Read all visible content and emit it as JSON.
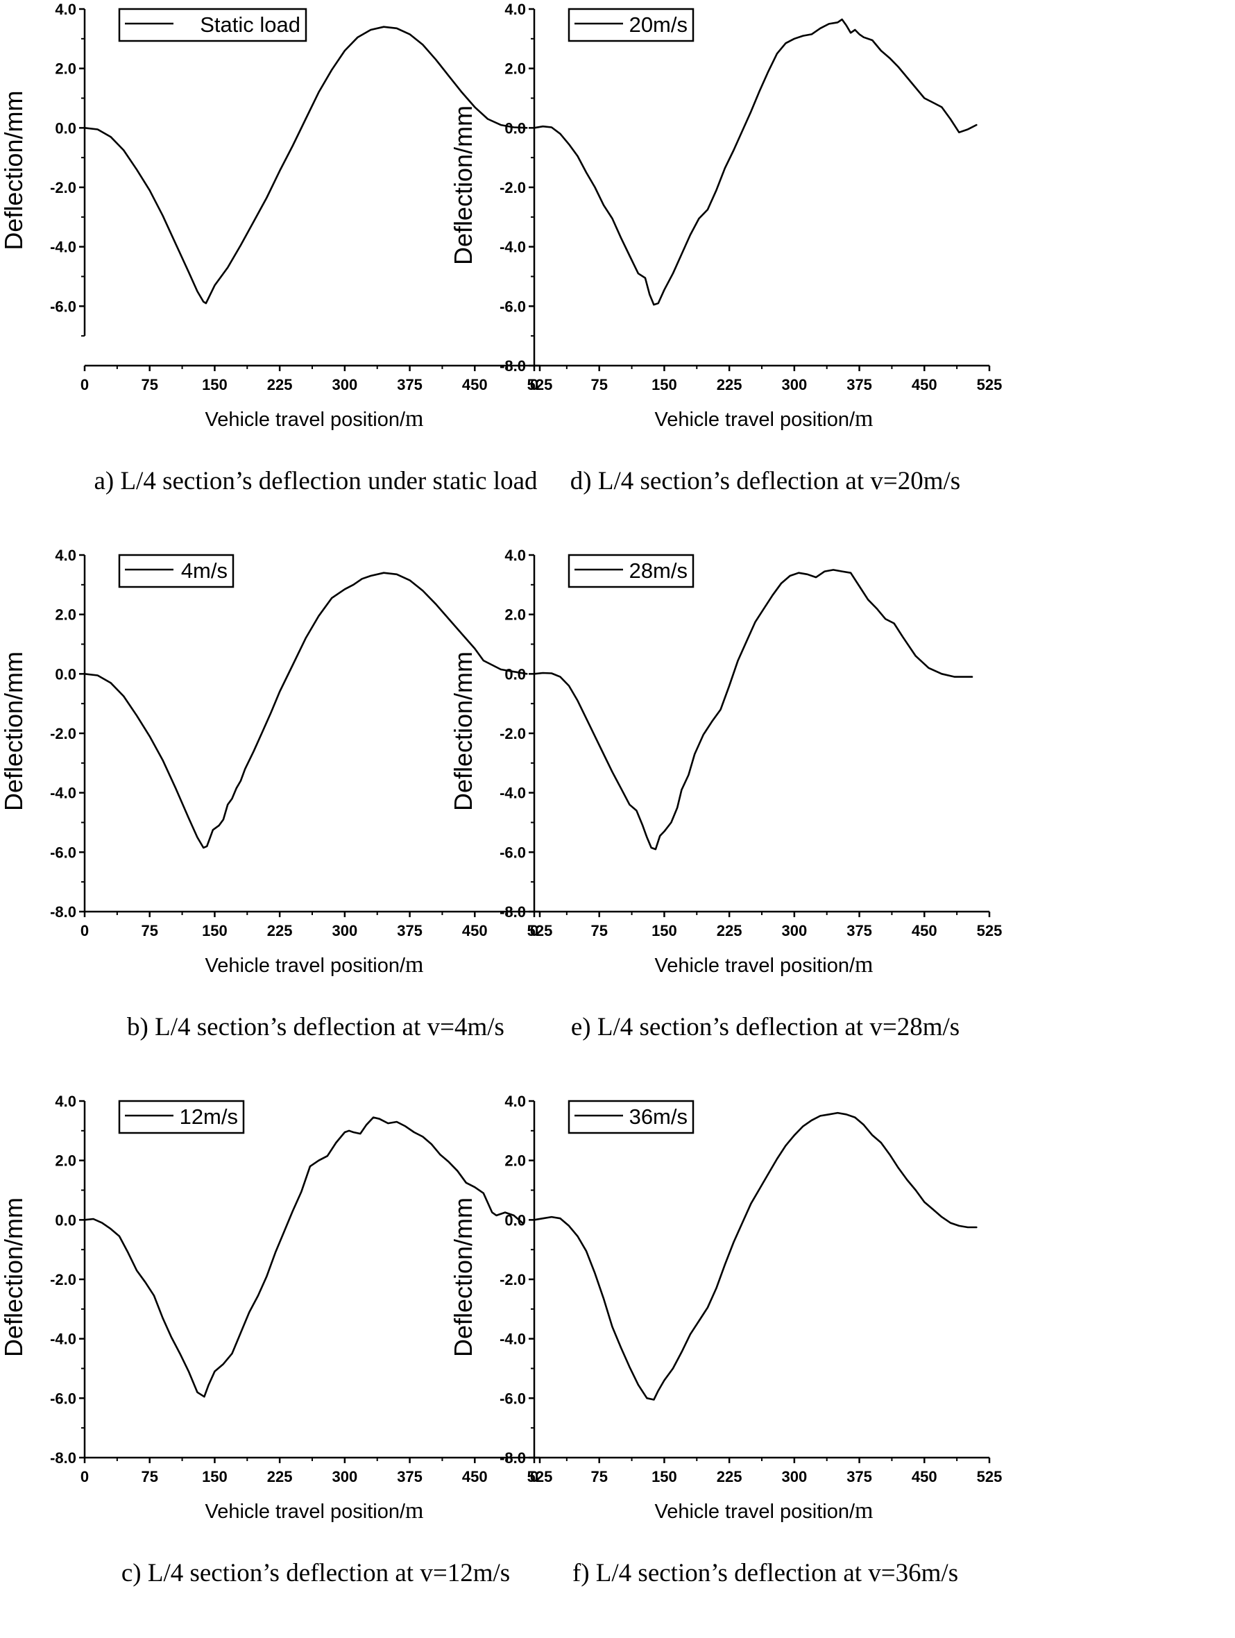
{
  "chart_data": [
    {
      "type": "line",
      "caption": "a) L/4 section’s deflection under static load",
      "legend": "Static load",
      "xlabel": "Vehicle travel position/",
      "xunit": "m",
      "ylabel": "Deflection/mm",
      "xlim": [
        0,
        525
      ],
      "ylim": [
        -8,
        4
      ],
      "ylim_shown": [
        -7,
        4
      ],
      "xticks": [
        "0",
        "75",
        "150",
        "225",
        "300",
        "375",
        "450",
        "525"
      ],
      "yticks": [
        "4.0",
        "2.0",
        "0.0",
        "-2.0",
        "-4.0",
        "-6.0"
      ],
      "x": [
        0,
        15,
        30,
        45,
        60,
        75,
        90,
        105,
        120,
        130,
        137,
        140,
        150,
        165,
        180,
        195,
        210,
        225,
        240,
        255,
        270,
        285,
        300,
        315,
        330,
        345,
        360,
        375,
        390,
        405,
        420,
        435,
        450,
        465,
        480,
        495,
        510
      ],
      "y": [
        0,
        -0.05,
        -0.3,
        -0.75,
        -1.4,
        -2.1,
        -2.95,
        -3.9,
        -4.85,
        -5.5,
        -5.85,
        -5.9,
        -5.3,
        -4.7,
        -3.95,
        -3.15,
        -2.35,
        -1.45,
        -0.6,
        0.3,
        1.2,
        1.95,
        2.6,
        3.05,
        3.3,
        3.4,
        3.35,
        3.15,
        2.8,
        2.3,
        1.75,
        1.2,
        0.7,
        0.3,
        0.1,
        0.02,
        0
      ]
    },
    {
      "type": "line",
      "caption": "d) L/4 section’s deflection at v=20m/s",
      "legend": "20m/s",
      "xlabel": "Vehicle travel position/",
      "xunit": "m",
      "ylabel": "Deflection/mm",
      "xlim": [
        0,
        525
      ],
      "ylim": [
        -8,
        4
      ],
      "ylim_shown": [
        -8,
        4
      ],
      "xticks": [
        "0",
        "75",
        "150",
        "225",
        "300",
        "375",
        "450",
        "525"
      ],
      "yticks": [
        "4.0",
        "2.0",
        "0.0",
        "-2.0",
        "-4.0",
        "-6.0",
        "-8.0"
      ],
      "x": [
        0,
        10,
        20,
        30,
        40,
        50,
        60,
        70,
        80,
        90,
        100,
        110,
        120,
        128,
        133,
        138,
        143,
        150,
        160,
        170,
        180,
        190,
        200,
        210,
        220,
        230,
        240,
        250,
        260,
        270,
        280,
        290,
        300,
        310,
        320,
        330,
        340,
        350,
        355,
        360,
        365,
        370,
        375,
        380,
        390,
        400,
        410,
        420,
        430,
        440,
        450,
        460,
        470,
        480,
        490,
        500,
        510
      ],
      "y": [
        0,
        0.05,
        0.02,
        -0.2,
        -0.55,
        -0.95,
        -1.5,
        -2.0,
        -2.6,
        -3.05,
        -3.7,
        -4.3,
        -4.9,
        -5.05,
        -5.6,
        -5.95,
        -5.9,
        -5.45,
        -4.9,
        -4.25,
        -3.6,
        -3.05,
        -2.75,
        -2.1,
        -1.35,
        -0.75,
        -0.1,
        0.55,
        1.25,
        1.9,
        2.5,
        2.85,
        3.0,
        3.1,
        3.15,
        3.35,
        3.5,
        3.55,
        3.65,
        3.45,
        3.2,
        3.3,
        3.15,
        3.05,
        2.95,
        2.6,
        2.35,
        2.05,
        1.7,
        1.35,
        1.0,
        0.85,
        0.7,
        0.3,
        -0.15,
        -0.05,
        0.1
      ]
    },
    {
      "type": "line",
      "caption": "b) L/4 section’s deflection at v=4m/s",
      "legend": "4m/s",
      "xlabel": "Vehicle travel position/",
      "xunit": "m",
      "ylabel": "Deflection/mm",
      "xlim": [
        0,
        525
      ],
      "ylim": [
        -8,
        4
      ],
      "ylim_shown": [
        -8,
        4
      ],
      "xticks": [
        "0",
        "75",
        "150",
        "225",
        "300",
        "375",
        "450",
        "525"
      ],
      "yticks": [
        "4.0",
        "2.0",
        "0.0",
        "-2.0",
        "-4.0",
        "-6.0",
        "-8.0"
      ],
      "x": [
        0,
        15,
        30,
        45,
        60,
        75,
        90,
        105,
        120,
        130,
        137,
        141,
        148,
        155,
        160,
        165,
        170,
        175,
        180,
        185,
        195,
        205,
        215,
        225,
        240,
        255,
        270,
        285,
        300,
        310,
        320,
        330,
        345,
        360,
        375,
        390,
        405,
        420,
        435,
        450,
        460,
        470,
        480,
        490,
        500,
        510
      ],
      "y": [
        0,
        -0.05,
        -0.3,
        -0.75,
        -1.4,
        -2.1,
        -2.9,
        -3.85,
        -4.85,
        -5.5,
        -5.85,
        -5.8,
        -5.25,
        -5.1,
        -4.9,
        -4.4,
        -4.2,
        -3.85,
        -3.6,
        -3.2,
        -2.6,
        -1.95,
        -1.3,
        -0.6,
        0.3,
        1.2,
        1.95,
        2.55,
        2.85,
        3.0,
        3.2,
        3.3,
        3.4,
        3.35,
        3.15,
        2.8,
        2.35,
        1.85,
        1.35,
        0.85,
        0.45,
        0.3,
        0.15,
        0.1,
        0.05,
        0
      ]
    },
    {
      "type": "line",
      "caption": "e) L/4 section’s deflection at v=28m/s",
      "legend": "28m/s",
      "xlabel": "Vehicle travel position/",
      "xunit": "m",
      "ylabel": "Deflection/mm",
      "xlim": [
        0,
        525
      ],
      "ylim": [
        -8,
        4
      ],
      "ylim_shown": [
        -8,
        4
      ],
      "xticks": [
        "0",
        "75",
        "150",
        "225",
        "300",
        "375",
        "450",
        "525"
      ],
      "yticks": [
        "4.0",
        "2.0",
        "0.0",
        "-2.0",
        "-4.0",
        "-6.0",
        "-8.0"
      ],
      "x": [
        0,
        10,
        20,
        30,
        40,
        50,
        60,
        70,
        80,
        90,
        100,
        110,
        118,
        125,
        130,
        135,
        140,
        145,
        150,
        158,
        165,
        170,
        178,
        185,
        195,
        205,
        215,
        225,
        235,
        245,
        255,
        265,
        275,
        285,
        295,
        305,
        315,
        325,
        335,
        345,
        355,
        365,
        375,
        385,
        395,
        405,
        415,
        425,
        440,
        455,
        470,
        485,
        495,
        505
      ],
      "y": [
        0,
        0.03,
        0.02,
        -0.1,
        -0.4,
        -0.9,
        -1.5,
        -2.1,
        -2.7,
        -3.3,
        -3.85,
        -4.4,
        -4.6,
        -5.1,
        -5.5,
        -5.85,
        -5.9,
        -5.45,
        -5.3,
        -5.0,
        -4.5,
        -3.9,
        -3.4,
        -2.7,
        -2.05,
        -1.6,
        -1.2,
        -0.4,
        0.45,
        1.1,
        1.75,
        2.2,
        2.65,
        3.05,
        3.3,
        3.4,
        3.35,
        3.25,
        3.45,
        3.5,
        3.45,
        3.4,
        2.95,
        2.5,
        2.2,
        1.85,
        1.7,
        1.25,
        0.6,
        0.2,
        0.0,
        -0.1,
        -0.1,
        -0.1
      ]
    },
    {
      "type": "line",
      "caption": "c) L/4 section’s deflection at v=12m/s",
      "legend": "12m/s",
      "xlabel": "Vehicle travel position/",
      "xunit": "m",
      "ylabel": "Deflection/mm",
      "xlim": [
        0,
        525
      ],
      "ylim": [
        -8,
        4
      ],
      "ylim_shown": [
        -8,
        4
      ],
      "xticks": [
        "0",
        "75",
        "150",
        "225",
        "300",
        "375",
        "450",
        "525"
      ],
      "yticks": [
        "4.0",
        "2.0",
        "0.0",
        "-2.0",
        "-4.0",
        "-6.0",
        "-8.0"
      ],
      "x": [
        0,
        10,
        20,
        30,
        40,
        50,
        60,
        70,
        80,
        90,
        100,
        110,
        120,
        130,
        138,
        143,
        150,
        160,
        170,
        180,
        190,
        200,
        210,
        220,
        230,
        240,
        250,
        260,
        270,
        280,
        290,
        300,
        305,
        310,
        318,
        325,
        333,
        340,
        350,
        360,
        370,
        380,
        390,
        400,
        410,
        420,
        430,
        440,
        450,
        460,
        470,
        475,
        485,
        495,
        505
      ],
      "y": [
        0,
        0.03,
        -0.1,
        -0.3,
        -0.55,
        -1.1,
        -1.7,
        -2.1,
        -2.55,
        -3.3,
        -3.95,
        -4.5,
        -5.1,
        -5.8,
        -5.95,
        -5.55,
        -5.1,
        -4.85,
        -4.5,
        -3.8,
        -3.1,
        -2.55,
        -1.9,
        -1.1,
        -0.4,
        0.3,
        0.95,
        1.8,
        2.0,
        2.15,
        2.6,
        2.95,
        3.0,
        2.95,
        2.9,
        3.2,
        3.45,
        3.4,
        3.25,
        3.3,
        3.15,
        2.95,
        2.8,
        2.55,
        2.2,
        1.95,
        1.65,
        1.25,
        1.1,
        0.9,
        0.25,
        0.15,
        0.25,
        0.15,
        -0.1
      ]
    },
    {
      "type": "line",
      "caption": "f) L/4 section’s deflection at v=36m/s",
      "legend": "36m/s",
      "xlabel": "Vehicle travel position/",
      "xunit": "m",
      "ylabel": "Deflection/mm",
      "xlim": [
        0,
        525
      ],
      "ylim": [
        -8,
        4
      ],
      "ylim_shown": [
        -8,
        4
      ],
      "xticks": [
        "0",
        "75",
        "150",
        "225",
        "300",
        "375",
        "450",
        "525"
      ],
      "yticks": [
        "4.0",
        "2.0",
        "0.0",
        "-2.0",
        "-4.0",
        "-6.0",
        "-8.0"
      ],
      "x": [
        0,
        10,
        20,
        30,
        40,
        50,
        60,
        70,
        80,
        90,
        100,
        110,
        120,
        130,
        138,
        143,
        150,
        160,
        170,
        180,
        190,
        200,
        210,
        220,
        230,
        240,
        250,
        260,
        270,
        280,
        290,
        300,
        310,
        320,
        330,
        340,
        350,
        360,
        370,
        380,
        390,
        400,
        410,
        420,
        430,
        440,
        450,
        460,
        470,
        480,
        490,
        500,
        510
      ],
      "y": [
        0,
        0.05,
        0.1,
        0.05,
        -0.2,
        -0.55,
        -1.05,
        -1.8,
        -2.65,
        -3.6,
        -4.3,
        -4.95,
        -5.55,
        -6.0,
        -6.05,
        -5.75,
        -5.4,
        -5.0,
        -4.45,
        -3.85,
        -3.4,
        -2.95,
        -2.3,
        -1.5,
        -0.75,
        -0.1,
        0.55,
        1.05,
        1.55,
        2.05,
        2.5,
        2.85,
        3.15,
        3.35,
        3.5,
        3.55,
        3.6,
        3.55,
        3.45,
        3.2,
        2.85,
        2.6,
        2.2,
        1.75,
        1.35,
        1.0,
        0.6,
        0.35,
        0.1,
        -0.1,
        -0.2,
        -0.25,
        -0.25
      ]
    }
  ]
}
